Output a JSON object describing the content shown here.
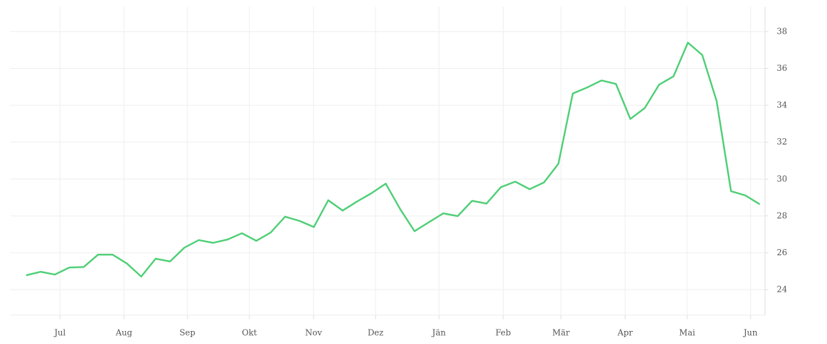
{
  "chart_data": {
    "type": "line",
    "x": [
      0,
      1,
      2,
      3,
      4,
      5,
      6,
      7,
      8,
      9,
      10,
      11,
      12,
      13,
      14,
      15,
      16,
      17,
      18,
      19,
      20,
      21,
      22,
      23,
      24,
      25,
      26,
      27,
      28,
      29,
      30,
      31,
      32,
      33,
      34,
      35,
      36,
      37,
      38,
      39,
      40,
      41,
      42,
      43,
      44,
      45,
      46,
      47,
      48,
      49,
      50,
      51
    ],
    "series": [
      {
        "color": "#4fcf76",
        "values": [
          24.78,
          24.97,
          24.82,
          25.2,
          25.23,
          25.9,
          25.9,
          25.42,
          24.71,
          25.68,
          25.53,
          26.28,
          26.69,
          26.54,
          26.72,
          27.06,
          26.65,
          27.1,
          27.96,
          27.73,
          27.4,
          28.85,
          28.29,
          28.78,
          29.23,
          29.75,
          28.37,
          27.17,
          27.66,
          28.14,
          27.99,
          28.82,
          28.67,
          29.56,
          29.86,
          29.45,
          29.82,
          30.83,
          34.64,
          34.97,
          35.35,
          35.16,
          33.26,
          33.85,
          35.12,
          35.57,
          37.4,
          36.73,
          34.23,
          29.34,
          29.11,
          28.63
        ]
      }
    ],
    "xlim": [
      -1.1,
      51.36
    ],
    "xticks": [
      {
        "value": 2.35,
        "label": "Jul"
      },
      {
        "value": 6.8,
        "label": "Aug"
      },
      {
        "value": 11.21,
        "label": "Sep"
      },
      {
        "value": 15.52,
        "label": "Okt"
      },
      {
        "value": 19.98,
        "label": "Nov"
      },
      {
        "value": 24.29,
        "label": "Dez"
      },
      {
        "value": 28.7,
        "label": "Jän"
      },
      {
        "value": 33.16,
        "label": "Feb"
      },
      {
        "value": 37.18,
        "label": "Mär"
      },
      {
        "value": 41.64,
        "label": "Apr"
      },
      {
        "value": 45.95,
        "label": "Mai"
      },
      {
        "value": 50.36,
        "label": "Jun"
      }
    ],
    "ylim": [
      22.62,
      39.34
    ],
    "yticks": [
      24,
      26,
      28,
      30,
      32,
      34,
      36,
      38
    ],
    "grid": true
  }
}
